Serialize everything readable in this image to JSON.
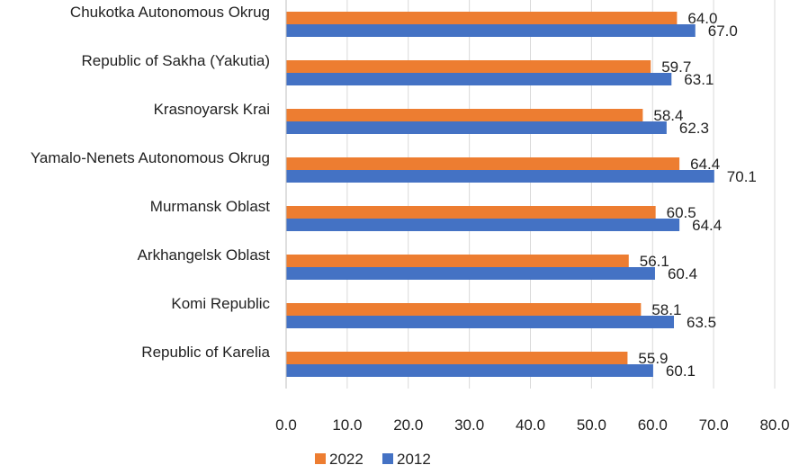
{
  "chart_data": {
    "type": "bar",
    "orientation": "horizontal",
    "categories": [
      "Chukotka Autonomous Okrug",
      "Republic of Sakha (Yakutia)",
      "Krasnoyarsk Krai",
      "Yamalo-Nenets Autonomous Okrug",
      "Murmansk Oblast",
      "Arkhangelsk Oblast",
      "Komi Republic",
      "Republic of Karelia"
    ],
    "series": [
      {
        "name": "2022",
        "color": "#ED7D31",
        "values": [
          64.0,
          59.7,
          58.4,
          64.4,
          60.5,
          56.1,
          58.1,
          55.9
        ],
        "labels": [
          "64.0",
          "59.7",
          "58.4",
          "64.4",
          "60.5",
          "56.1",
          "58.1",
          "55.9"
        ]
      },
      {
        "name": "2012",
        "color": "#4472C4",
        "values": [
          67.0,
          63.1,
          62.3,
          70.1,
          64.4,
          60.4,
          63.5,
          60.1
        ],
        "labels": [
          "67.0",
          "63.1",
          "62.3",
          "70.1",
          "64.4",
          "60.4",
          "63.5",
          "60.1"
        ]
      }
    ],
    "xlim": [
      0,
      80
    ],
    "ticks": [
      0,
      10,
      20,
      30,
      40,
      50,
      60,
      70,
      80
    ],
    "tick_labels": [
      "0.0",
      "10.0",
      "20.0",
      "30.0",
      "40.0",
      "50.0",
      "60.0",
      "70.0",
      "80.0"
    ],
    "grid": true,
    "legend_position": "bottom",
    "title": "",
    "xlabel": "",
    "ylabel": ""
  }
}
